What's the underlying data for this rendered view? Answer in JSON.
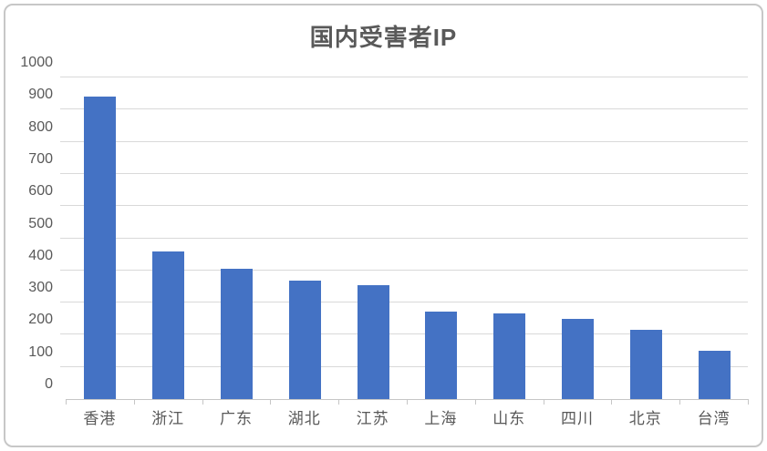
{
  "chart_data": {
    "type": "bar",
    "title": "国内受害者IP",
    "categories": [
      "香港",
      "浙江",
      "广东",
      "湖北",
      "江苏",
      "上海",
      "山东",
      "四川",
      "北京",
      "台湾"
    ],
    "values": [
      940,
      460,
      405,
      368,
      355,
      273,
      267,
      250,
      215,
      150
    ],
    "yticks": [
      0,
      100,
      200,
      300,
      400,
      500,
      600,
      700,
      800,
      900,
      1000
    ],
    "ylim": [
      0,
      1000
    ],
    "xlabel": "",
    "ylabel": "",
    "grid": "horizontal-only",
    "legend_position": "none",
    "colors": {
      "bar": "#4472c4",
      "gridline": "#d9d9d9",
      "axis_line": "#c6c6c6",
      "labels": "#595959",
      "title": "#595959",
      "outer_border": "#c7c7c7",
      "background": "#ffffff"
    }
  }
}
